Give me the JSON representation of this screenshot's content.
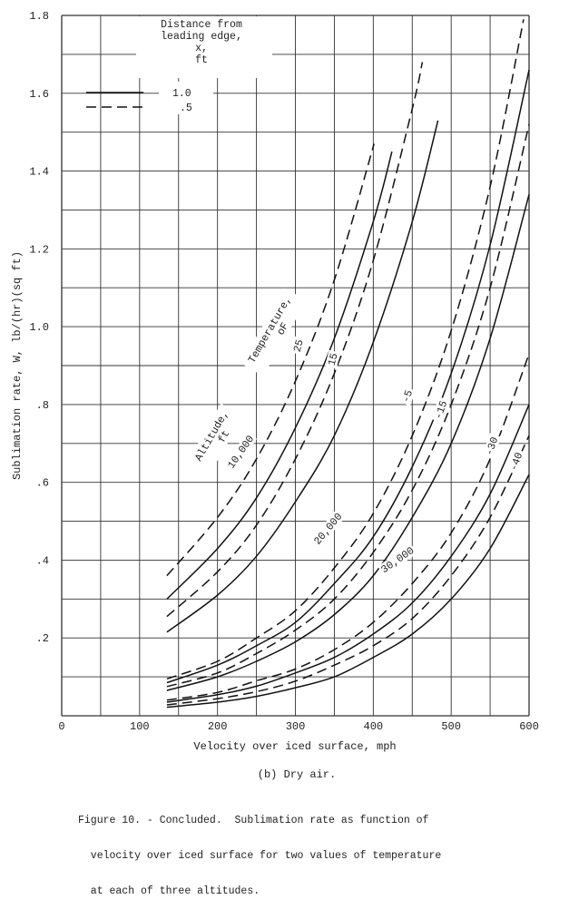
{
  "chart_data": {
    "type": "line",
    "title": "",
    "xlabel": "Velocity over iced surface, mph",
    "ylabel": "Sublimation rate, W, lb/(hr)(sq ft)",
    "xlim": [
      0,
      600
    ],
    "ylim": [
      0,
      1.8
    ],
    "grid": true,
    "x_ticks": [
      0,
      100,
      200,
      300,
      400,
      500,
      600
    ],
    "x_tick_labels": [
      "0",
      "100",
      "200",
      "300",
      "400",
      "500",
      "600"
    ],
    "y_ticks": [
      0.2,
      0.4,
      0.6,
      0.8,
      1.0,
      1.2,
      1.4,
      1.6,
      1.8
    ],
    "y_tick_labels": [
      ".2",
      ".4",
      ".6",
      ".8",
      "1.0",
      "1.2",
      "1.4",
      "1.6",
      "1.8"
    ],
    "legend": {
      "placement": "top-left",
      "title": [
        "Distance from",
        "leading edge,",
        "x,",
        "ft"
      ],
      "entries": [
        {
          "label": "1.0",
          "style": "solid"
        },
        {
          "label": ".5",
          "style": "dashed"
        }
      ]
    },
    "annotations": {
      "altitude_title": [
        "Altitude,",
        "ft"
      ],
      "temperature_title": [
        "Temperature,",
        "oF"
      ],
      "altitudes": [
        "10,000",
        "20,000",
        "30,000"
      ],
      "temperatures": [
        "25",
        "15",
        "-5",
        "-15",
        "-30",
        "-40"
      ]
    },
    "series": [
      {
        "name": "10,000 ft, 25 F, x=.5",
        "style": "dashed",
        "x": [
          135,
          200,
          250,
          300,
          350,
          401
        ],
        "y": [
          0.36,
          0.51,
          0.66,
          0.86,
          1.12,
          1.47
        ]
      },
      {
        "name": "10,000 ft, 25 F, x=1.0",
        "style": "solid",
        "x": [
          135,
          200,
          250,
          300,
          350,
          400,
          424
        ],
        "y": [
          0.3,
          0.43,
          0.56,
          0.74,
          0.97,
          1.27,
          1.45
        ]
      },
      {
        "name": "10,000 ft, 15 F, x=.5",
        "style": "dashed",
        "x": [
          135,
          200,
          250,
          300,
          350,
          400,
          450,
          463
        ],
        "y": [
          0.255,
          0.37,
          0.49,
          0.66,
          0.88,
          1.17,
          1.56,
          1.68
        ]
      },
      {
        "name": "10,000 ft, 15 F, x=1.0",
        "style": "solid",
        "x": [
          135,
          200,
          250,
          300,
          350,
          400,
          450,
          483
        ],
        "y": [
          0.215,
          0.31,
          0.41,
          0.55,
          0.72,
          0.96,
          1.27,
          1.53
        ]
      },
      {
        "name": "20,000 ft, -5 F, x=.5",
        "style": "dashed",
        "x": [
          135,
          200,
          250,
          300,
          350,
          400,
          450,
          500,
          550,
          593
        ],
        "y": [
          0.095,
          0.14,
          0.2,
          0.27,
          0.38,
          0.52,
          0.72,
          0.99,
          1.36,
          1.79
        ]
      },
      {
        "name": "20,000 ft, -5 F, x=1.0",
        "style": "solid",
        "x": [
          135,
          200,
          250,
          300,
          350,
          400,
          450,
          500,
          550,
          600
        ],
        "y": [
          0.085,
          0.13,
          0.18,
          0.24,
          0.34,
          0.46,
          0.64,
          0.88,
          1.21,
          1.66
        ]
      },
      {
        "name": "20,000 ft, -15 F, x=.5",
        "style": "dashed",
        "x": [
          135,
          200,
          250,
          300,
          350,
          400,
          450,
          500,
          550,
          600
        ],
        "y": [
          0.075,
          0.11,
          0.16,
          0.22,
          0.3,
          0.42,
          0.58,
          0.8,
          1.1,
          1.52
        ]
      },
      {
        "name": "20,000 ft, -15 F, x=1.0",
        "style": "solid",
        "x": [
          135,
          200,
          250,
          300,
          350,
          400,
          450,
          500,
          550,
          600
        ],
        "y": [
          0.065,
          0.1,
          0.14,
          0.19,
          0.26,
          0.36,
          0.51,
          0.7,
          0.97,
          1.34
        ]
      },
      {
        "name": "30,000 ft, -30 F, x=.5",
        "style": "dashed",
        "x": [
          135,
          200,
          250,
          300,
          350,
          400,
          450,
          500,
          550,
          600
        ],
        "y": [
          0.04,
          0.06,
          0.09,
          0.12,
          0.17,
          0.24,
          0.34,
          0.47,
          0.66,
          0.93
        ]
      },
      {
        "name": "30,000 ft, -30 F, x=1.0",
        "style": "solid",
        "x": [
          135,
          200,
          250,
          300,
          350,
          400,
          450,
          500,
          550,
          600
        ],
        "y": [
          0.035,
          0.054,
          0.076,
          0.11,
          0.15,
          0.21,
          0.29,
          0.41,
          0.57,
          0.8
        ]
      },
      {
        "name": "30,000 ft, -40 F, x=.5",
        "style": "dashed",
        "x": [
          135,
          200,
          250,
          300,
          350,
          400,
          450,
          500,
          550,
          600
        ],
        "y": [
          0.028,
          0.044,
          0.062,
          0.089,
          0.13,
          0.18,
          0.25,
          0.36,
          0.51,
          0.72
        ]
      },
      {
        "name": "30,000 ft, -40 F, x=1.0",
        "style": "solid",
        "x": [
          135,
          200,
          250,
          300,
          350,
          400,
          450,
          500,
          550,
          600
        ],
        "y": [
          0.022,
          0.035,
          0.05,
          0.072,
          0.1,
          0.15,
          0.21,
          0.3,
          0.43,
          0.62
        ]
      }
    ]
  },
  "subcaption": "(b) Dry air.",
  "caption": [
    "Figure 10. - Concluded.  Sublimation rate as function of",
    "  velocity over iced surface for two values of temperature",
    "  at each of three altitudes."
  ]
}
